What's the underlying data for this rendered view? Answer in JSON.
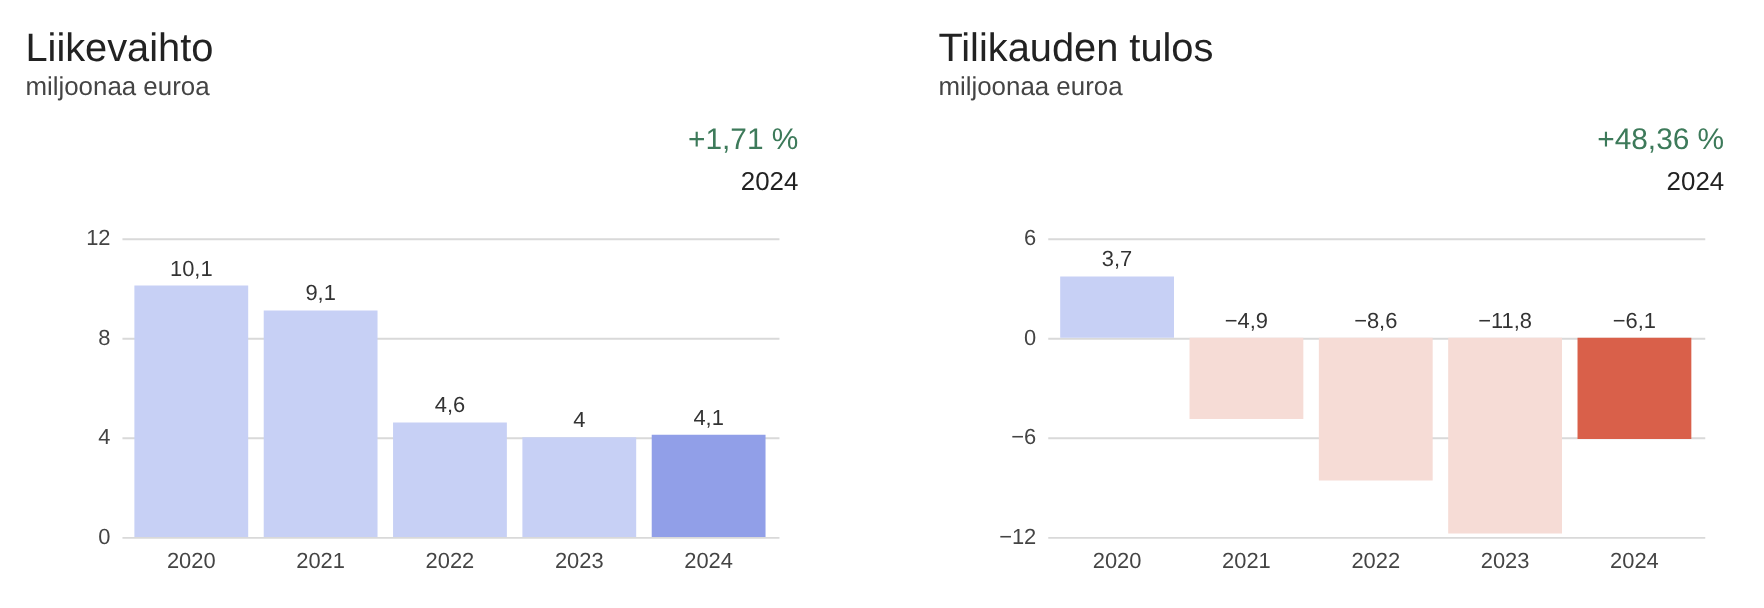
{
  "chart_data": [
    {
      "type": "bar",
      "title": "Liikevaihto",
      "subtitle": "miljoonaa euroa",
      "annotations": [
        "+1,71 %",
        "2024"
      ],
      "categories": [
        "2020",
        "2021",
        "2022",
        "2023",
        "2024"
      ],
      "values": [
        10.1,
        9.1,
        4.6,
        4,
        4.1
      ],
      "colors": [
        "#c7d0f5",
        "#c7d0f5",
        "#c7d0f5",
        "#c7d0f5",
        "#919fe8"
      ],
      "value_labels": [
        "10,1",
        "9,1",
        "4,6",
        "4",
        "4,1"
      ],
      "ylim": [
        0,
        12
      ],
      "yticks": [
        0,
        4,
        8,
        12
      ],
      "grid": "y"
    },
    {
      "type": "bar",
      "title": "Tilikauden tulos",
      "subtitle": "miljoonaa euroa",
      "annotations": [
        "+48,36 %",
        "2024"
      ],
      "categories": [
        "2020",
        "2021",
        "2022",
        "2023",
        "2024"
      ],
      "values": [
        3.7,
        -4.9,
        -8.6,
        -11.8,
        -6.1
      ],
      "colors": [
        "#c7d0f5",
        "#f6dcd6",
        "#f6dcd6",
        "#f6dcd6",
        "#d9604a"
      ],
      "value_labels": [
        "3,7",
        "−4,9",
        "−8,6",
        "−11,8",
        "−6,1"
      ],
      "ylim": [
        -12,
        6
      ],
      "yticks": [
        -12,
        -6,
        0,
        6
      ],
      "grid": "y"
    }
  ]
}
